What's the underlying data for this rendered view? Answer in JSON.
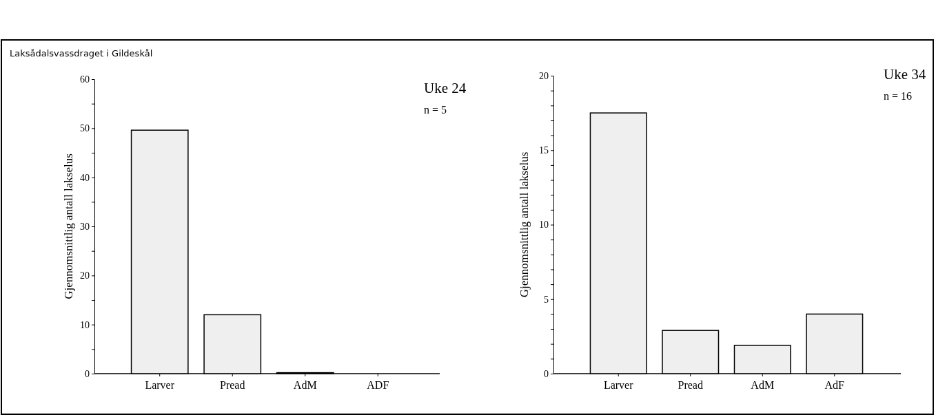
{
  "chart_data": [
    {
      "type": "bar",
      "title": "Laksådalsvassdraget i Gildeskål",
      "ylabel": "Gjennomsnittlig antall lakselus",
      "annotations": [
        "Uke 24",
        "n = 5"
      ],
      "categories": [
        "Larver",
        "Pread",
        "AdM",
        "ADF"
      ],
      "values": [
        49.6,
        12,
        0.2,
        0
      ],
      "color": "#efefef",
      "ylim": [
        0,
        60
      ],
      "yticks": [
        0,
        {
          "value": 5,
          "label": null
        },
        10,
        {
          "value": 15,
          "label": null
        },
        20,
        {
          "value": 25,
          "label": null
        },
        30,
        {
          "value": 35,
          "label": null
        },
        40,
        {
          "value": 45,
          "label": null
        },
        50,
        {
          "value": 55,
          "label": null
        },
        60
      ]
    },
    {
      "type": "bar",
      "ylabel": "Gjennomsnittlig antall lakselus",
      "annotations": [
        "Uke 34",
        "n = 16"
      ],
      "categories": [
        "Larver",
        "Pread",
        "AdM",
        "AdF"
      ],
      "values": [
        17.5,
        2.9,
        1.9,
        4.0
      ],
      "color": "#efefef",
      "ylim": [
        0,
        20
      ],
      "yticks": [
        0,
        {
          "value": 1,
          "label": null
        },
        {
          "value": 2,
          "label": null
        },
        {
          "value": 3,
          "label": null
        },
        {
          "value": 4,
          "label": null
        },
        5,
        {
          "value": 6,
          "label": null
        },
        {
          "value": 7,
          "label": null
        },
        {
          "value": 8,
          "label": null
        },
        {
          "value": 9,
          "label": null
        },
        10,
        {
          "value": 11,
          "label": null
        },
        {
          "value": 12,
          "label": null
        },
        {
          "value": 13,
          "label": null
        },
        {
          "value": 14,
          "label": null
        },
        15,
        {
          "value": 16,
          "label": null
        },
        {
          "value": 17,
          "label": null
        },
        {
          "value": 18,
          "label": null
        },
        {
          "value": 19,
          "label": null
        },
        20
      ]
    }
  ]
}
